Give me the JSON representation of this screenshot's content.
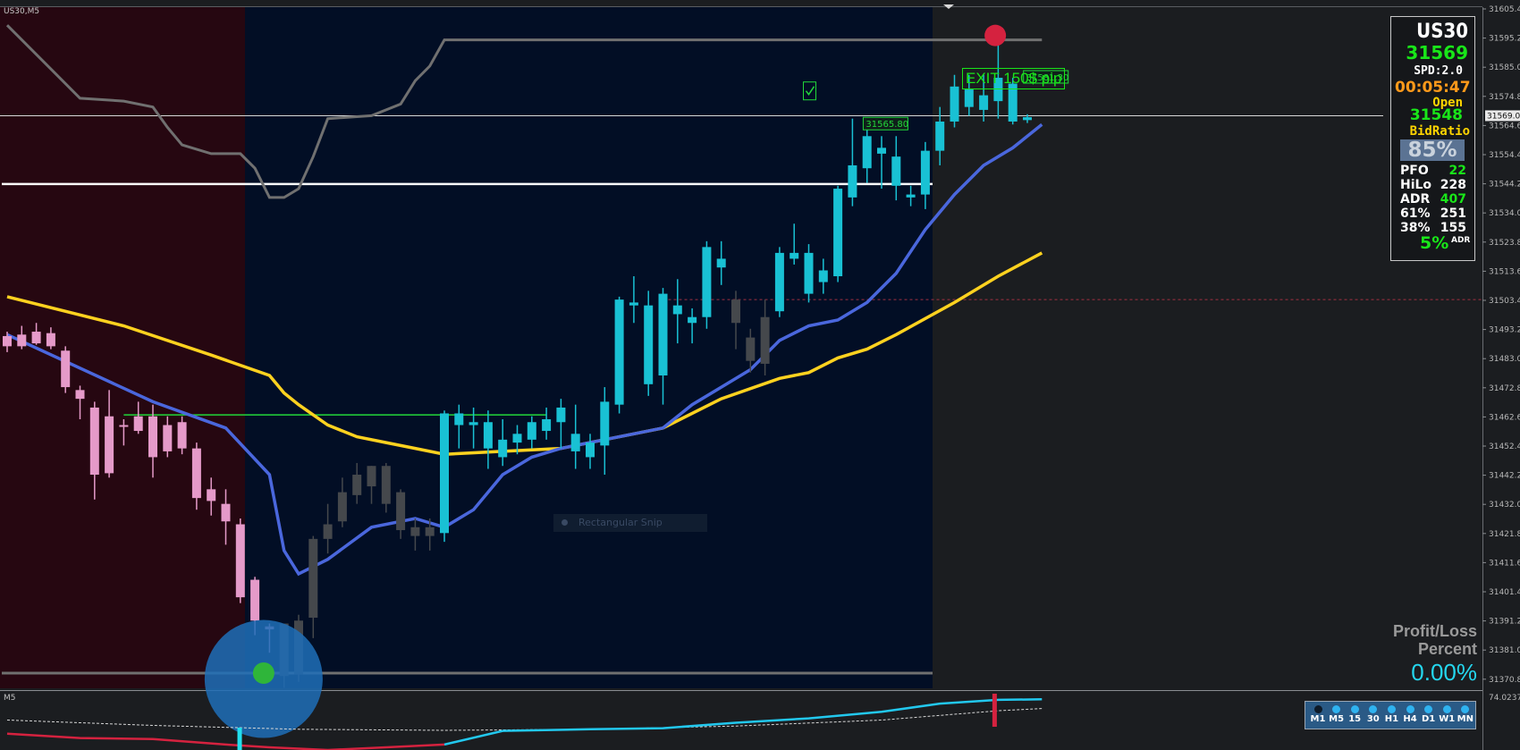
{
  "symbol_label": "US30,M5",
  "subwindow_label": "M5",
  "exit_label": "EXIT 150$ pip",
  "snip_label": "Rectangular Snip",
  "info_panel": {
    "symbol": "US30",
    "price": "31569",
    "spread": "SPD:2.0",
    "timer": "00:05:47",
    "open_label": "Open",
    "open_value": "31548",
    "bidratio_label": "BidRatio",
    "bidratio_value": "85%",
    "stats": [
      {
        "label": "PFO",
        "value": "22",
        "color": "#19e619"
      },
      {
        "label": "HiLo",
        "value": "228",
        "color": "#ffffff"
      },
      {
        "label": "ADR",
        "value": "407",
        "color": "#19e619"
      },
      {
        "label": "61%",
        "value": "251",
        "color": "#ffffff"
      },
      {
        "label": "38%",
        "value": "155",
        "color": "#ffffff"
      }
    ],
    "adr_percent": "5%",
    "adr_percent_label": "ADR"
  },
  "profit_loss": {
    "label_line1": "Profit/Loss",
    "label_line2": "Percent",
    "value": "0.00%"
  },
  "timeframes": [
    {
      "label": "M1",
      "active": true
    },
    {
      "label": "M5",
      "active": false
    },
    {
      "label": "15",
      "active": false
    },
    {
      "label": "30",
      "active": false
    },
    {
      "label": "H1",
      "active": false
    },
    {
      "label": "H4",
      "active": false
    },
    {
      "label": "D1",
      "active": false
    },
    {
      "label": "W1",
      "active": false
    },
    {
      "label": "MN",
      "active": false
    }
  ],
  "colors": {
    "bull_candle": "#19c1d4",
    "bear_candle_down_session": "#e59ac9",
    "neutral_candle": "#45484c",
    "fast_ma": "#4a67dd",
    "slow_ma": "#ffd21f",
    "channel": "#707070",
    "session_left_bg": "#260711",
    "session_right_bg": "#020e25",
    "chart_bg": "#1b1d20"
  },
  "chart_data": {
    "type": "candlestick",
    "symbol": "US30",
    "timeframe": "M5",
    "ylim": [
      31372.8,
      31606.2
    ],
    "y_ticks": [
      "31605.4",
      "31595.2",
      "31585.0",
      "31574.8",
      "31564.6",
      "31554.4",
      "31544.2",
      "31534.0",
      "31523.8",
      "31513.6",
      "31503.4",
      "31493.2",
      "31483.0",
      "31472.8",
      "31462.6",
      "31452.4",
      "31442.2",
      "31432.0",
      "31421.8",
      "31411.6",
      "31401.4",
      "31391.2",
      "31381.0",
      "31370.8"
    ],
    "current_price_tag": "31569.0",
    "sub_window_tick": "74.0237",
    "candles": [
      {
        "o": 31493.5,
        "h": 31495.0,
        "l": 31488.0,
        "c": 31490.0,
        "style": "pink"
      },
      {
        "o": 31494.0,
        "h": 31497.0,
        "l": 31489.0,
        "c": 31490.0,
        "style": "pink"
      },
      {
        "o": 31495.0,
        "h": 31498.0,
        "l": 31490.5,
        "c": 31491.0,
        "style": "pink"
      },
      {
        "o": 31494.5,
        "h": 31496.5,
        "l": 31489.0,
        "c": 31490.0,
        "style": "pink"
      },
      {
        "o": 31488.5,
        "h": 31490.0,
        "l": 31474.0,
        "c": 31476.0,
        "style": "pink"
      },
      {
        "o": 31475.0,
        "h": 31476.5,
        "l": 31465.0,
        "c": 31472.0,
        "style": "pink"
      },
      {
        "o": 31469.0,
        "h": 31471.0,
        "l": 31437.5,
        "c": 31446.0,
        "style": "pink"
      },
      {
        "o": 31466.0,
        "h": 31475.0,
        "l": 31445.0,
        "c": 31446.5,
        "style": "pink"
      },
      {
        "o": 31463.0,
        "h": 31465.0,
        "l": 31456.0,
        "c": 31463.0,
        "style": "pink"
      },
      {
        "o": 31466.0,
        "h": 31471.0,
        "l": 31460.0,
        "c": 31461.0,
        "style": "pink"
      },
      {
        "o": 31466.0,
        "h": 31470.0,
        "l": 31445.0,
        "c": 31452.0,
        "style": "pink"
      },
      {
        "o": 31463.0,
        "h": 31466.0,
        "l": 31452.0,
        "c": 31454.0,
        "style": "pink"
      },
      {
        "o": 31464.0,
        "h": 31466.0,
        "l": 31453.0,
        "c": 31455.0,
        "style": "pink"
      },
      {
        "o": 31455.0,
        "h": 31457.0,
        "l": 31434.0,
        "c": 31438.0,
        "style": "pink"
      },
      {
        "o": 31441.0,
        "h": 31445.0,
        "l": 31432.0,
        "c": 31437.0,
        "style": "pink"
      },
      {
        "o": 31436.0,
        "h": 31441.0,
        "l": 31422.0,
        "c": 31430.0,
        "style": "pink"
      },
      {
        "o": 31429.0,
        "h": 31431.0,
        "l": 31402.0,
        "c": 31404.0,
        "style": "pink"
      },
      {
        "o": 31410.0,
        "h": 31411.0,
        "l": 31391.0,
        "c": 31396.0,
        "style": "pink"
      },
      {
        "o": 31394.0,
        "h": 31395.0,
        "l": 31385.0,
        "c": 31393.0,
        "style": "pink"
      },
      {
        "o": 31377.0,
        "h": 31395.0,
        "l": 31373.0,
        "c": 31395.0,
        "style": "dark"
      },
      {
        "o": 31377.5,
        "h": 31398.0,
        "l": 31375.0,
        "c": 31396.0,
        "style": "dark"
      },
      {
        "o": 31397.0,
        "h": 31425.0,
        "l": 31390.0,
        "c": 31424.0,
        "style": "dark"
      },
      {
        "o": 31424.0,
        "h": 31436.0,
        "l": 31419.0,
        "c": 31429.0,
        "style": "dark"
      },
      {
        "o": 31430.0,
        "h": 31445.0,
        "l": 31428.0,
        "c": 31440.0,
        "style": "dark"
      },
      {
        "o": 31439.0,
        "h": 31450.0,
        "l": 31436.0,
        "c": 31446.0,
        "style": "dark"
      },
      {
        "o": 31442.0,
        "h": 31449.0,
        "l": 31436.0,
        "c": 31449.0,
        "style": "dark"
      },
      {
        "o": 31449.0,
        "h": 31450.0,
        "l": 31433.0,
        "c": 31436.0,
        "style": "dark"
      },
      {
        "o": 31440.0,
        "h": 31441.0,
        "l": 31424.0,
        "c": 31427.0,
        "style": "dark"
      },
      {
        "o": 31428.0,
        "h": 31431.0,
        "l": 31420.0,
        "c": 31425.0,
        "style": "dark"
      },
      {
        "o": 31428.0,
        "h": 31431.0,
        "l": 31420.0,
        "c": 31425.0,
        "style": "dark"
      },
      {
        "o": 31426.0,
        "h": 31468.0,
        "l": 31423.0,
        "c": 31467.0,
        "style": "cyan"
      },
      {
        "o": 31463.0,
        "h": 31470.0,
        "l": 31455.0,
        "c": 31467.0,
        "style": "cyan"
      },
      {
        "o": 31464.0,
        "h": 31469.0,
        "l": 31455.0,
        "c": 31463.0,
        "style": "cyan"
      },
      {
        "o": 31455.0,
        "h": 31468.0,
        "l": 31448.0,
        "c": 31464.0,
        "style": "cyan"
      },
      {
        "o": 31452.0,
        "h": 31465.0,
        "l": 31449.0,
        "c": 31458.0,
        "style": "cyan"
      },
      {
        "o": 31457.0,
        "h": 31463.0,
        "l": 31453.0,
        "c": 31460.0,
        "style": "cyan"
      },
      {
        "o": 31458.0,
        "h": 31466.0,
        "l": 31455.0,
        "c": 31464.0,
        "style": "cyan"
      },
      {
        "o": 31461.0,
        "h": 31469.0,
        "l": 31458.0,
        "c": 31465.0,
        "style": "cyan"
      },
      {
        "o": 31464.0,
        "h": 31472.0,
        "l": 31455.0,
        "c": 31469.0,
        "style": "cyan"
      },
      {
        "o": 31460.0,
        "h": 31470.0,
        "l": 31448.0,
        "c": 31454.0,
        "style": "cyan"
      },
      {
        "o": 31452.0,
        "h": 31460.0,
        "l": 31448.0,
        "c": 31457.0,
        "style": "cyan"
      },
      {
        "o": 31456.0,
        "h": 31476.0,
        "l": 31446.0,
        "c": 31471.0,
        "style": "cyan"
      },
      {
        "o": 31470.0,
        "h": 31507.0,
        "l": 31467.0,
        "c": 31506.0,
        "style": "cyan"
      },
      {
        "o": 31504.0,
        "h": 31514.0,
        "l": 31498.0,
        "c": 31505.0,
        "style": "cyan"
      },
      {
        "o": 31504.0,
        "h": 31509.0,
        "l": 31473.0,
        "c": 31477.0,
        "style": "cyan"
      },
      {
        "o": 31480.0,
        "h": 31510.0,
        "l": 31470.0,
        "c": 31508.0,
        "style": "cyan"
      },
      {
        "o": 31504.0,
        "h": 31513.0,
        "l": 31491.0,
        "c": 31501.0,
        "style": "cyan"
      },
      {
        "o": 31498.0,
        "h": 31503.0,
        "l": 31491.0,
        "c": 31500.0,
        "style": "cyan"
      },
      {
        "o": 31500.0,
        "h": 31526.0,
        "l": 31496.0,
        "c": 31524.0,
        "style": "cyan"
      },
      {
        "o": 31517.0,
        "h": 31526.0,
        "l": 31511.0,
        "c": 31520.0,
        "style": "cyan"
      },
      {
        "o": 31506.0,
        "h": 31509.0,
        "l": 31489.0,
        "c": 31498.0,
        "style": "neutral"
      },
      {
        "o": 31485.0,
        "h": 31496.0,
        "l": 31481.0,
        "c": 31493.0,
        "style": "neutral"
      },
      {
        "o": 31484.0,
        "h": 31506.0,
        "l": 31480.0,
        "c": 31500.0,
        "style": "neutral"
      },
      {
        "o": 31502.0,
        "h": 31524.0,
        "l": 31500.0,
        "c": 31522.0,
        "style": "cyan"
      },
      {
        "o": 31520.0,
        "h": 31532.0,
        "l": 31518.0,
        "c": 31522.0,
        "style": "cyan"
      },
      {
        "o": 31508.0,
        "h": 31525.0,
        "l": 31505.0,
        "c": 31522.0,
        "style": "cyan"
      },
      {
        "o": 31512.0,
        "h": 31520.0,
        "l": 31508.0,
        "c": 31516.0,
        "style": "cyan"
      },
      {
        "o": 31514.0,
        "h": 31545.0,
        "l": 31512.0,
        "c": 31544.0,
        "style": "cyan"
      },
      {
        "o": 31541.0,
        "h": 31568.0,
        "l": 31538.0,
        "c": 31552.0,
        "style": "cyan"
      },
      {
        "o": 31551.0,
        "h": 31565.0,
        "l": 31546.0,
        "c": 31562.0,
        "style": "cyan"
      },
      {
        "o": 31556.0,
        "h": 31562.0,
        "l": 31544.0,
        "c": 31558.0,
        "style": "cyan"
      },
      {
        "o": 31545.0,
        "h": 31562.0,
        "l": 31540.0,
        "c": 31555.0,
        "style": "cyan"
      },
      {
        "o": 31542.0,
        "h": 31545.0,
        "l": 31538.0,
        "c": 31541.0,
        "style": "cyan"
      },
      {
        "o": 31542.0,
        "h": 31560.0,
        "l": 31537.0,
        "c": 31557.0,
        "style": "cyan"
      },
      {
        "o": 31557.0,
        "h": 31572.0,
        "l": 31552.0,
        "c": 31567.0,
        "style": "cyan"
      },
      {
        "o": 31567.0,
        "h": 31583.0,
        "l": 31565.0,
        "c": 31579.0,
        "style": "cyan"
      },
      {
        "o": 31572.0,
        "h": 31583.0,
        "l": 31569.0,
        "c": 31578.0,
        "style": "cyan"
      },
      {
        "o": 31571.0,
        "h": 31583.0,
        "l": 31567.0,
        "c": 31576.0,
        "style": "cyan"
      },
      {
        "o": 31574.0,
        "h": 31597.0,
        "l": 31568.0,
        "c": 31582.0,
        "style": "cyan"
      },
      {
        "o": 31580.0,
        "h": 31582.0,
        "l": 31566.0,
        "c": 31567.0,
        "style": "cyan"
      },
      {
        "o": 31567.5,
        "h": 31569.5,
        "l": 31566.5,
        "c": 31568.5,
        "style": "cyan"
      }
    ],
    "fast_ma": [
      [
        0,
        31494
      ],
      [
        10,
        31471
      ],
      [
        15,
        31462
      ],
      [
        18,
        31446
      ],
      [
        19,
        31420
      ],
      [
        20,
        31412
      ],
      [
        22,
        31417
      ],
      [
        25,
        31428
      ],
      [
        28,
        31431
      ],
      [
        30,
        31428
      ],
      [
        32,
        31434
      ],
      [
        34,
        31446
      ],
      [
        36,
        31452
      ],
      [
        38,
        31455
      ],
      [
        41,
        31458
      ],
      [
        43,
        31460
      ],
      [
        45,
        31462
      ],
      [
        47,
        31470
      ],
      [
        49,
        31476
      ],
      [
        51,
        31482
      ],
      [
        53,
        31492
      ],
      [
        55,
        31497
      ],
      [
        57,
        31499
      ],
      [
        59,
        31505
      ],
      [
        61,
        31515
      ],
      [
        63,
        31530
      ],
      [
        65,
        31542
      ],
      [
        67,
        31552
      ],
      [
        69,
        31558
      ],
      [
        71,
        31566
      ]
    ],
    "slow_ma": [
      [
        0,
        31507
      ],
      [
        8,
        31497
      ],
      [
        14,
        31487
      ],
      [
        18,
        31480
      ],
      [
        19,
        31474
      ],
      [
        20,
        31470
      ],
      [
        22,
        31463
      ],
      [
        24,
        31459
      ],
      [
        26,
        31457
      ],
      [
        28,
        31455
      ],
      [
        30,
        31453
      ],
      [
        34,
        31454
      ],
      [
        38,
        31455
      ],
      [
        41,
        31458
      ],
      [
        45,
        31462
      ],
      [
        49,
        31472
      ],
      [
        53,
        31479
      ],
      [
        55,
        31481
      ],
      [
        57,
        31486
      ],
      [
        59,
        31489
      ],
      [
        61,
        31494
      ],
      [
        65,
        31505
      ],
      [
        68,
        31514
      ],
      [
        71,
        31522
      ]
    ],
    "channel_line": [
      [
        0,
        31600
      ],
      [
        3,
        31585
      ],
      [
        5,
        31575
      ],
      [
        8,
        31574
      ],
      [
        10,
        31572
      ],
      [
        11,
        31565
      ],
      [
        12,
        31559
      ],
      [
        14,
        31556
      ],
      [
        16,
        31556
      ],
      [
        17,
        31551
      ],
      [
        18,
        31541
      ],
      [
        19,
        31541
      ],
      [
        20,
        31544
      ],
      [
        21,
        31555
      ],
      [
        22,
        31568
      ],
      [
        25,
        31569
      ],
      [
        27,
        31573
      ],
      [
        28,
        31581
      ],
      [
        29,
        31586
      ],
      [
        30,
        31595
      ],
      [
        71,
        31595
      ]
    ],
    "horizontal_lines": [
      {
        "price": 31569.0,
        "type": "current-price"
      },
      {
        "price": 31545.6,
        "type": "level"
      },
      {
        "price": 31466.5,
        "type": "start-line"
      },
      {
        "price": 31506.0,
        "type": "dashed-red"
      },
      {
        "price": 31378.0,
        "type": "channel-low"
      }
    ],
    "annotations": [
      {
        "label": "31581.30",
        "candle": 69,
        "price": 31582.0
      },
      {
        "label": "31565.80",
        "candle": 58,
        "price": 31566.0
      }
    ],
    "oscillator": {
      "main": [
        [
          0,
          0.3
        ],
        [
          5,
          0.22
        ],
        [
          10,
          0.2
        ],
        [
          15,
          0.1
        ],
        [
          18,
          0.05
        ],
        [
          22,
          0.0
        ],
        [
          26,
          0.05
        ],
        [
          30,
          0.1
        ],
        [
          34,
          0.35
        ],
        [
          40,
          0.38
        ],
        [
          45,
          0.4
        ],
        [
          50,
          0.5
        ],
        [
          55,
          0.58
        ],
        [
          60,
          0.7
        ],
        [
          64,
          0.85
        ],
        [
          68,
          0.92
        ],
        [
          71,
          0.93
        ]
      ],
      "signal": [
        [
          0,
          0.55
        ],
        [
          10,
          0.45
        ],
        [
          20,
          0.38
        ],
        [
          30,
          0.36
        ],
        [
          40,
          0.38
        ],
        [
          50,
          0.44
        ],
        [
          60,
          0.55
        ],
        [
          68,
          0.72
        ],
        [
          71,
          0.76
        ]
      ]
    }
  }
}
